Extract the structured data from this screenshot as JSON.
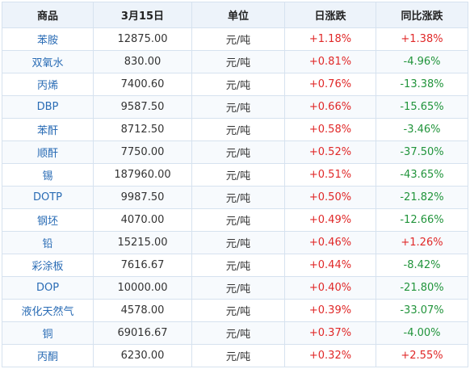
{
  "colors": {
    "up": "#e02828",
    "down": "#21943b",
    "name": "#2a6cb5",
    "header_bg": "#edf3fa",
    "border": "#d6e2ef"
  },
  "headers": [
    "商品",
    "3月15日",
    "单位",
    "日涨跌",
    "同比涨跌"
  ],
  "rows": [
    {
      "name": "苯胺",
      "price": "12875.00",
      "unit": "元/吨",
      "daily": "+1.18%",
      "yoy": "+1.38%"
    },
    {
      "name": "双氧水",
      "price": "830.00",
      "unit": "元/吨",
      "daily": "+0.81%",
      "yoy": "-4.96%"
    },
    {
      "name": "丙烯",
      "price": "7400.60",
      "unit": "元/吨",
      "daily": "+0.76%",
      "yoy": "-13.38%"
    },
    {
      "name": "DBP",
      "price": "9587.50",
      "unit": "元/吨",
      "daily": "+0.66%",
      "yoy": "-15.65%"
    },
    {
      "name": "苯酐",
      "price": "8712.50",
      "unit": "元/吨",
      "daily": "+0.58%",
      "yoy": "-3.46%"
    },
    {
      "name": "顺酐",
      "price": "7750.00",
      "unit": "元/吨",
      "daily": "+0.52%",
      "yoy": "-37.50%"
    },
    {
      "name": "锡",
      "price": "187960.00",
      "unit": "元/吨",
      "daily": "+0.51%",
      "yoy": "-43.65%"
    },
    {
      "name": "DOTP",
      "price": "9987.50",
      "unit": "元/吨",
      "daily": "+0.50%",
      "yoy": "-21.82%"
    },
    {
      "name": "钢坯",
      "price": "4070.00",
      "unit": "元/吨",
      "daily": "+0.49%",
      "yoy": "-12.66%"
    },
    {
      "name": "铅",
      "price": "15215.00",
      "unit": "元/吨",
      "daily": "+0.46%",
      "yoy": "+1.26%"
    },
    {
      "name": "彩涂板",
      "price": "7616.67",
      "unit": "元/吨",
      "daily": "+0.44%",
      "yoy": "-8.42%"
    },
    {
      "name": "DOP",
      "price": "10000.00",
      "unit": "元/吨",
      "daily": "+0.40%",
      "yoy": "-21.80%"
    },
    {
      "name": "液化天然气",
      "price": "4578.00",
      "unit": "元/吨",
      "daily": "+0.39%",
      "yoy": "-33.07%"
    },
    {
      "name": "铜",
      "price": "69016.67",
      "unit": "元/吨",
      "daily": "+0.37%",
      "yoy": "-4.00%"
    },
    {
      "name": "丙酮",
      "price": "6230.00",
      "unit": "元/吨",
      "daily": "+0.32%",
      "yoy": "+2.55%"
    }
  ]
}
